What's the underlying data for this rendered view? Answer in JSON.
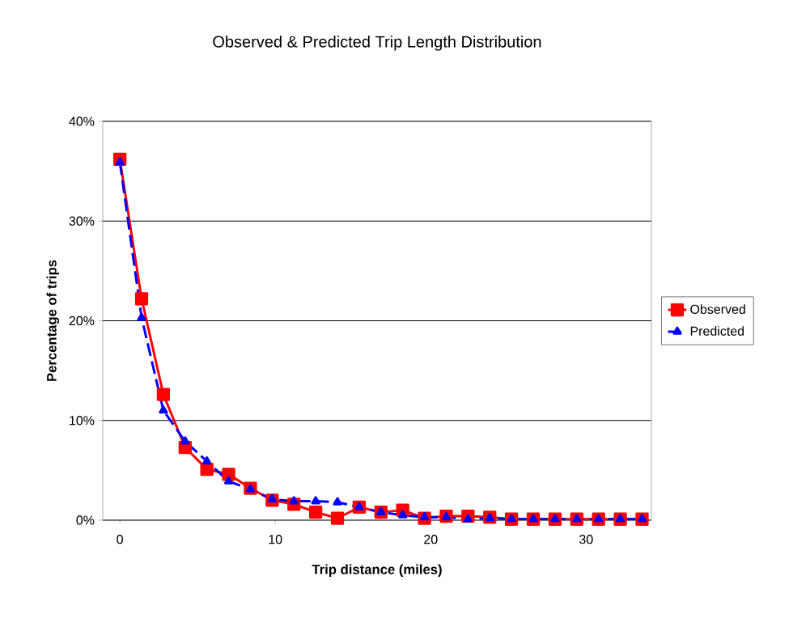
{
  "chart_data": {
    "type": "line",
    "title": "Observed & Predicted Trip Length Distribution",
    "xlabel": "Trip distance (miles)",
    "ylabel": "Percentage of trips",
    "x": [
      0,
      1.4,
      2.8,
      4.2,
      5.6,
      7,
      8.4,
      9.8,
      11.2,
      12.6,
      14,
      15.4,
      16.8,
      18.2,
      19.6,
      21,
      22.4,
      23.8,
      25.2,
      26.6,
      28,
      29.4,
      30.8,
      32.2,
      33.6
    ],
    "series": [
      {
        "name": "Observed",
        "color": "#ff0000",
        "marker": "square",
        "line_style": "solid",
        "values": [
          36.2,
          22.2,
          12.6,
          7.3,
          5.1,
          4.6,
          3.2,
          2.0,
          1.6,
          0.8,
          0.2,
          1.3,
          0.8,
          1.0,
          0.2,
          0.4,
          0.4,
          0.3,
          0.1,
          0.1,
          0.1,
          0.1,
          0.1,
          0.1,
          0.1
        ]
      },
      {
        "name": "Predicted",
        "color": "#0000ff",
        "marker": "triangle",
        "line_style": "dashed",
        "values": [
          35.9,
          20.3,
          11.0,
          7.9,
          5.9,
          3.9,
          3.1,
          2.1,
          1.9,
          1.9,
          1.8,
          1.3,
          0.8,
          0.5,
          0.3,
          0.3,
          0.1,
          0.2,
          0.1,
          0.1,
          0.1,
          0.1,
          0.1,
          0.1,
          0.1
        ]
      }
    ],
    "xlim": [
      -1.1,
      34.2
    ],
    "xticks": [
      0,
      10,
      20,
      30
    ],
    "ylim": [
      0,
      40
    ],
    "yticks": [
      {
        "value": 0,
        "label": "0%"
      },
      {
        "value": 10,
        "label": "10%"
      },
      {
        "value": 20,
        "label": "20%"
      },
      {
        "value": 30,
        "label": "30%"
      },
      {
        "value": 40,
        "label": "40%"
      }
    ],
    "grid": "y",
    "legend": "right"
  }
}
